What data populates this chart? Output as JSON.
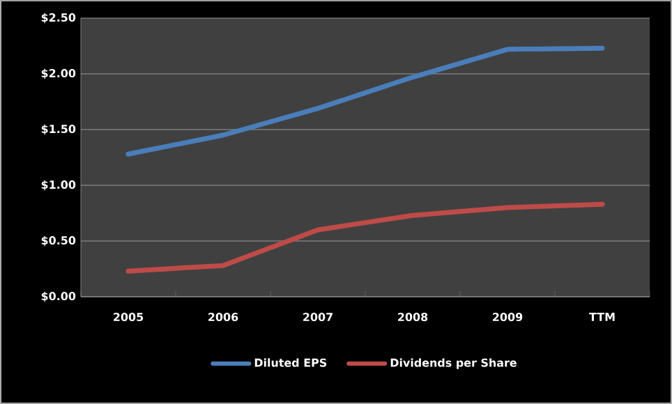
{
  "chart_data": {
    "type": "line",
    "categories": [
      "2005",
      "2006",
      "2007",
      "2008",
      "2009",
      "TTM"
    ],
    "series": [
      {
        "name": "Diluted EPS",
        "color": "#4a7ebb",
        "values": [
          1.28,
          1.45,
          1.69,
          1.97,
          2.22,
          2.23
        ]
      },
      {
        "name": "Dividends per Share",
        "color": "#be4b48",
        "values": [
          0.23,
          0.28,
          0.6,
          0.73,
          0.8,
          0.83
        ]
      }
    ],
    "ylim": [
      0,
      2.5
    ],
    "yticks": [
      {
        "value": 0,
        "label": "$0.00"
      },
      {
        "value": 0.5,
        "label": "$0.50"
      },
      {
        "value": 1,
        "label": "$1.00"
      },
      {
        "value": 1.5,
        "label": "$1.50"
      },
      {
        "value": 2,
        "label": "$2.00"
      },
      {
        "value": 2.5,
        "label": "$2.50"
      }
    ],
    "grid": "y",
    "legend": "bottom"
  }
}
